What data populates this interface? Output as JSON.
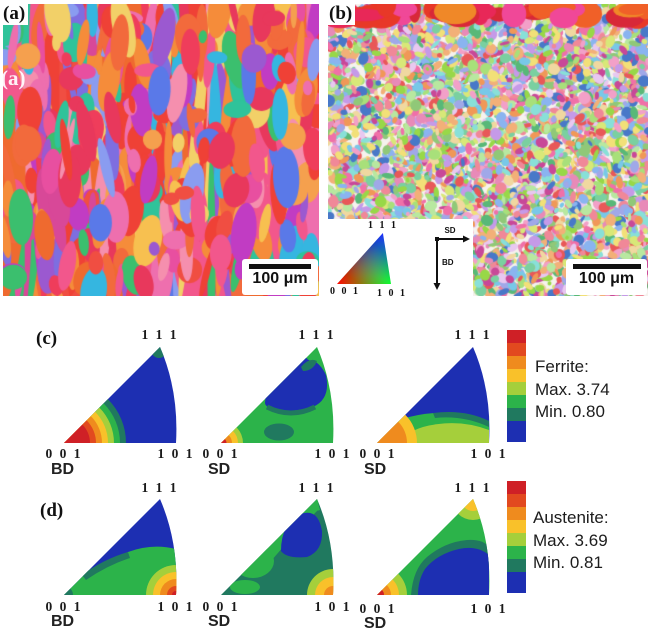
{
  "figure_labels": {
    "a": "(a)",
    "b": "(b)",
    "c": "(c)",
    "d": "(d)"
  },
  "panel_a": {
    "watermark": "(a)",
    "scale_bar": "100 μm"
  },
  "panel_b": {
    "scale_bar": "100 μm",
    "ipf_key": {
      "top": "1 1 1",
      "bottom_left": "0 0 1",
      "bottom_right": "1 0 1"
    },
    "axes": {
      "horizontal": "SD",
      "vertical": "BD"
    }
  },
  "row_c": {
    "triangles": [
      {
        "top": "1 1 1",
        "left": "0 0 1",
        "right": "1 0 1",
        "dir": "BD"
      },
      {
        "top": "1 1 1",
        "left": "0 0 1",
        "right": "1 0 1",
        "dir": "SD"
      },
      {
        "top": "1 1 1",
        "left": "0 0 1",
        "right": "1 0 1",
        "dir": "SD"
      }
    ],
    "legend": {
      "phase": "Ferrite:",
      "max": "Max. 3.74",
      "min": "Min. 0.80"
    }
  },
  "row_d": {
    "triangles": [
      {
        "top": "1 1 1",
        "left": "0 0 1",
        "right": "1 0 1",
        "dir": "BD"
      },
      {
        "top": "1 1 1",
        "left": "0 0 1",
        "right": "1 0 1",
        "dir": "SD"
      },
      {
        "top": "1 1 1",
        "left": "0 0 1",
        "right": "1 0 1",
        "dir": "SD"
      }
    ],
    "legend": {
      "phase": "Austenite:",
      "max": "Max. 3.69",
      "min": "Min. 0.81"
    }
  },
  "colorbar_colors": [
    "#cf2026",
    "#e2491f",
    "#ef8b1e",
    "#f9c12a",
    "#a5cf3b",
    "#2cb34a",
    "#20795f",
    "#1d2fb2"
  ],
  "chart_data": [
    {
      "type": "heatmap",
      "title": "Ferrite inverse pole figures",
      "categories": [
        "BD",
        "SD",
        "SD"
      ],
      "corner_labels": [
        "0 0 1",
        "1 0 1",
        "1 1 1"
      ],
      "max": 3.74,
      "min": 0.8
    },
    {
      "type": "heatmap",
      "title": "Austenite inverse pole figures",
      "categories": [
        "BD",
        "SD",
        "SD"
      ],
      "corner_labels": [
        "0 0 1",
        "1 0 1",
        "1 1 1"
      ],
      "max": 3.69,
      "min": 0.81
    }
  ]
}
